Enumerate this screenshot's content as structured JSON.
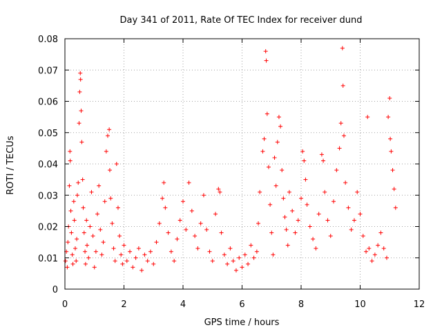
{
  "chart_data": {
    "type": "scatter",
    "title": "Day 341 of 2011, Rate Of TEC Index for receiver dund",
    "xlabel": "GPS time / hours",
    "ylabel": "ROTI / TECUs",
    "xlim": [
      0,
      12
    ],
    "ylim": [
      0,
      0.08
    ],
    "xticks": [
      "0",
      "2",
      "4",
      "6",
      "8",
      "10",
      "12"
    ],
    "yticks": [
      "0",
      "0.01",
      "0.02",
      "0.03",
      "0.04",
      "0.05",
      "0.06",
      "0.07",
      "0.08"
    ],
    "grid": true,
    "marker": "+",
    "color": "#ff0000",
    "series": [
      {
        "points": [
          [
            0.02,
            0.009
          ],
          [
            0.05,
            0.012
          ],
          [
            0.08,
            0.007
          ],
          [
            0.1,
            0.015
          ],
          [
            0.12,
            0.02
          ],
          [
            0.15,
            0.033
          ],
          [
            0.17,
            0.044
          ],
          [
            0.18,
            0.041
          ],
          [
            0.2,
            0.025
          ],
          [
            0.22,
            0.018
          ],
          [
            0.25,
            0.011
          ],
          [
            0.27,
            0.008
          ],
          [
            0.3,
            0.028
          ],
          [
            0.32,
            0.022
          ],
          [
            0.35,
            0.013
          ],
          [
            0.38,
            0.009
          ],
          [
            0.4,
            0.016
          ],
          [
            0.42,
            0.03
          ],
          [
            0.45,
            0.034
          ],
          [
            0.48,
            0.053
          ],
          [
            0.5,
            0.063
          ],
          [
            0.52,
            0.069
          ],
          [
            0.53,
            0.067
          ],
          [
            0.55,
            0.057
          ],
          [
            0.57,
            0.047
          ],
          [
            0.6,
            0.035
          ],
          [
            0.62,
            0.026
          ],
          [
            0.65,
            0.018
          ],
          [
            0.68,
            0.012
          ],
          [
            0.7,
            0.008
          ],
          [
            0.73,
            0.022
          ],
          [
            0.75,
            0.014
          ],
          [
            0.8,
            0.01
          ],
          [
            0.85,
            0.02
          ],
          [
            0.9,
            0.031
          ],
          [
            0.95,
            0.017
          ],
          [
            1.0,
            0.007
          ],
          [
            1.05,
            0.012
          ],
          [
            1.1,
            0.024
          ],
          [
            1.15,
            0.033
          ],
          [
            1.2,
            0.019
          ],
          [
            1.25,
            0.011
          ],
          [
            1.3,
            0.015
          ],
          [
            1.35,
            0.028
          ],
          [
            1.4,
            0.044
          ],
          [
            1.45,
            0.049
          ],
          [
            1.5,
            0.051
          ],
          [
            1.52,
            0.038
          ],
          [
            1.55,
            0.029
          ],
          [
            1.6,
            0.021
          ],
          [
            1.65,
            0.013
          ],
          [
            1.7,
            0.009
          ],
          [
            1.75,
            0.04
          ],
          [
            1.8,
            0.026
          ],
          [
            1.85,
            0.017
          ],
          [
            1.9,
            0.011
          ],
          [
            1.95,
            0.008
          ],
          [
            2.0,
            0.014
          ],
          [
            2.1,
            0.009
          ],
          [
            2.2,
            0.012
          ],
          [
            2.3,
            0.007
          ],
          [
            2.4,
            0.01
          ],
          [
            2.5,
            0.013
          ],
          [
            2.6,
            0.006
          ],
          [
            2.7,
            0.011
          ],
          [
            2.8,
            0.009
          ],
          [
            2.9,
            0.012
          ],
          [
            3.0,
            0.008
          ],
          [
            3.1,
            0.015
          ],
          [
            3.2,
            0.021
          ],
          [
            3.3,
            0.029
          ],
          [
            3.35,
            0.034
          ],
          [
            3.4,
            0.026
          ],
          [
            3.5,
            0.018
          ],
          [
            3.6,
            0.012
          ],
          [
            3.7,
            0.009
          ],
          [
            3.8,
            0.016
          ],
          [
            3.9,
            0.022
          ],
          [
            4.0,
            0.028
          ],
          [
            4.1,
            0.019
          ],
          [
            4.2,
            0.034
          ],
          [
            4.3,
            0.025
          ],
          [
            4.4,
            0.017
          ],
          [
            4.5,
            0.013
          ],
          [
            4.6,
            0.021
          ],
          [
            4.7,
            0.03
          ],
          [
            4.8,
            0.019
          ],
          [
            4.9,
            0.012
          ],
          [
            5.0,
            0.009
          ],
          [
            5.1,
            0.024
          ],
          [
            5.2,
            0.032
          ],
          [
            5.25,
            0.031
          ],
          [
            5.3,
            0.018
          ],
          [
            5.4,
            0.011
          ],
          [
            5.5,
            0.008
          ],
          [
            5.6,
            0.013
          ],
          [
            5.7,
            0.009
          ],
          [
            5.8,
            0.006
          ],
          [
            5.9,
            0.01
          ],
          [
            6.0,
            0.007
          ],
          [
            6.1,
            0.011
          ],
          [
            6.2,
            0.008
          ],
          [
            6.3,
            0.014
          ],
          [
            6.4,
            0.01
          ],
          [
            6.5,
            0.012
          ],
          [
            6.55,
            0.021
          ],
          [
            6.6,
            0.031
          ],
          [
            6.7,
            0.044
          ],
          [
            6.75,
            0.048
          ],
          [
            6.8,
            0.076
          ],
          [
            6.82,
            0.073
          ],
          [
            6.85,
            0.056
          ],
          [
            6.9,
            0.039
          ],
          [
            6.95,
            0.027
          ],
          [
            7.0,
            0.018
          ],
          [
            7.05,
            0.011
          ],
          [
            7.1,
            0.042
          ],
          [
            7.15,
            0.033
          ],
          [
            7.2,
            0.047
          ],
          [
            7.25,
            0.055
          ],
          [
            7.3,
            0.052
          ],
          [
            7.35,
            0.038
          ],
          [
            7.4,
            0.029
          ],
          [
            7.45,
            0.023
          ],
          [
            7.5,
            0.019
          ],
          [
            7.55,
            0.014
          ],
          [
            7.6,
            0.031
          ],
          [
            7.7,
            0.025
          ],
          [
            7.8,
            0.018
          ],
          [
            7.9,
            0.022
          ],
          [
            8.0,
            0.029
          ],
          [
            8.05,
            0.044
          ],
          [
            8.1,
            0.041
          ],
          [
            8.15,
            0.035
          ],
          [
            8.2,
            0.027
          ],
          [
            8.3,
            0.02
          ],
          [
            8.4,
            0.016
          ],
          [
            8.5,
            0.013
          ],
          [
            8.6,
            0.024
          ],
          [
            8.7,
            0.043
          ],
          [
            8.75,
            0.041
          ],
          [
            8.8,
            0.031
          ],
          [
            8.9,
            0.022
          ],
          [
            9.0,
            0.017
          ],
          [
            9.1,
            0.028
          ],
          [
            9.2,
            0.038
          ],
          [
            9.3,
            0.045
          ],
          [
            9.35,
            0.053
          ],
          [
            9.4,
            0.077
          ],
          [
            9.42,
            0.065
          ],
          [
            9.45,
            0.049
          ],
          [
            9.5,
            0.034
          ],
          [
            9.6,
            0.026
          ],
          [
            9.7,
            0.019
          ],
          [
            9.8,
            0.022
          ],
          [
            9.9,
            0.031
          ],
          [
            10.0,
            0.024
          ],
          [
            10.1,
            0.017
          ],
          [
            10.2,
            0.012
          ],
          [
            10.25,
            0.055
          ],
          [
            10.3,
            0.013
          ],
          [
            10.4,
            0.009
          ],
          [
            10.5,
            0.011
          ],
          [
            10.6,
            0.014
          ],
          [
            10.7,
            0.018
          ],
          [
            10.8,
            0.013
          ],
          [
            10.9,
            0.01
          ],
          [
            10.95,
            0.055
          ],
          [
            11.0,
            0.061
          ],
          [
            11.02,
            0.048
          ],
          [
            11.05,
            0.044
          ],
          [
            11.1,
            0.038
          ],
          [
            11.15,
            0.032
          ],
          [
            11.2,
            0.026
          ]
        ]
      }
    ]
  }
}
